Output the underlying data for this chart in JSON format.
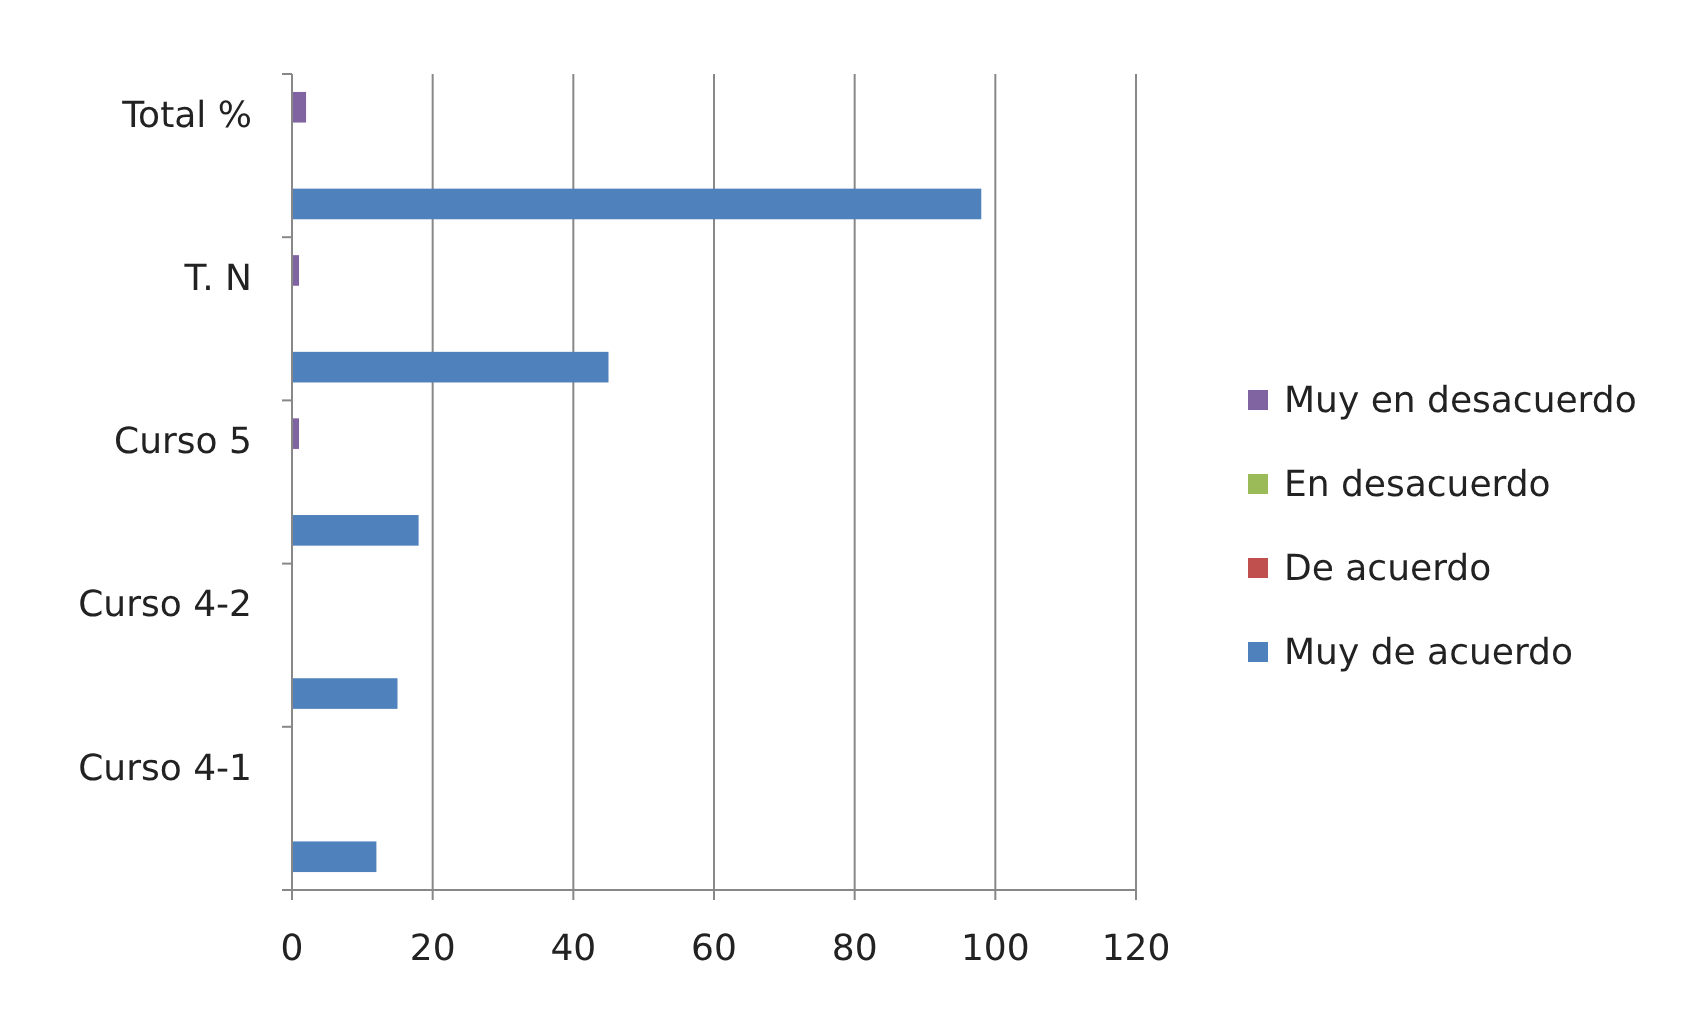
{
  "chart_data": {
    "type": "bar",
    "orientation": "horizontal",
    "categories": [
      "Total %",
      "T. N",
      "Curso 5",
      "Curso 4-2",
      "Curso 4-1"
    ],
    "series": [
      {
        "name": "Muy en desacuerdo",
        "color": "#8064a2",
        "values": [
          2,
          1,
          1,
          0,
          0
        ]
      },
      {
        "name": "En desacuerdo",
        "color": "#9bbb59",
        "values": [
          0,
          0,
          0,
          0,
          0
        ]
      },
      {
        "name": "De acuerdo",
        "color": "#c0504d",
        "values": [
          0,
          0,
          0,
          0,
          0
        ]
      },
      {
        "name": "Muy de acuerdo",
        "color": "#4f81bd",
        "values": [
          98,
          45,
          18,
          15,
          12
        ]
      }
    ],
    "xlim": [
      0,
      120
    ],
    "xticks": [
      0,
      20,
      40,
      60,
      80,
      100,
      120
    ],
    "grid": "x",
    "legend": "right"
  }
}
